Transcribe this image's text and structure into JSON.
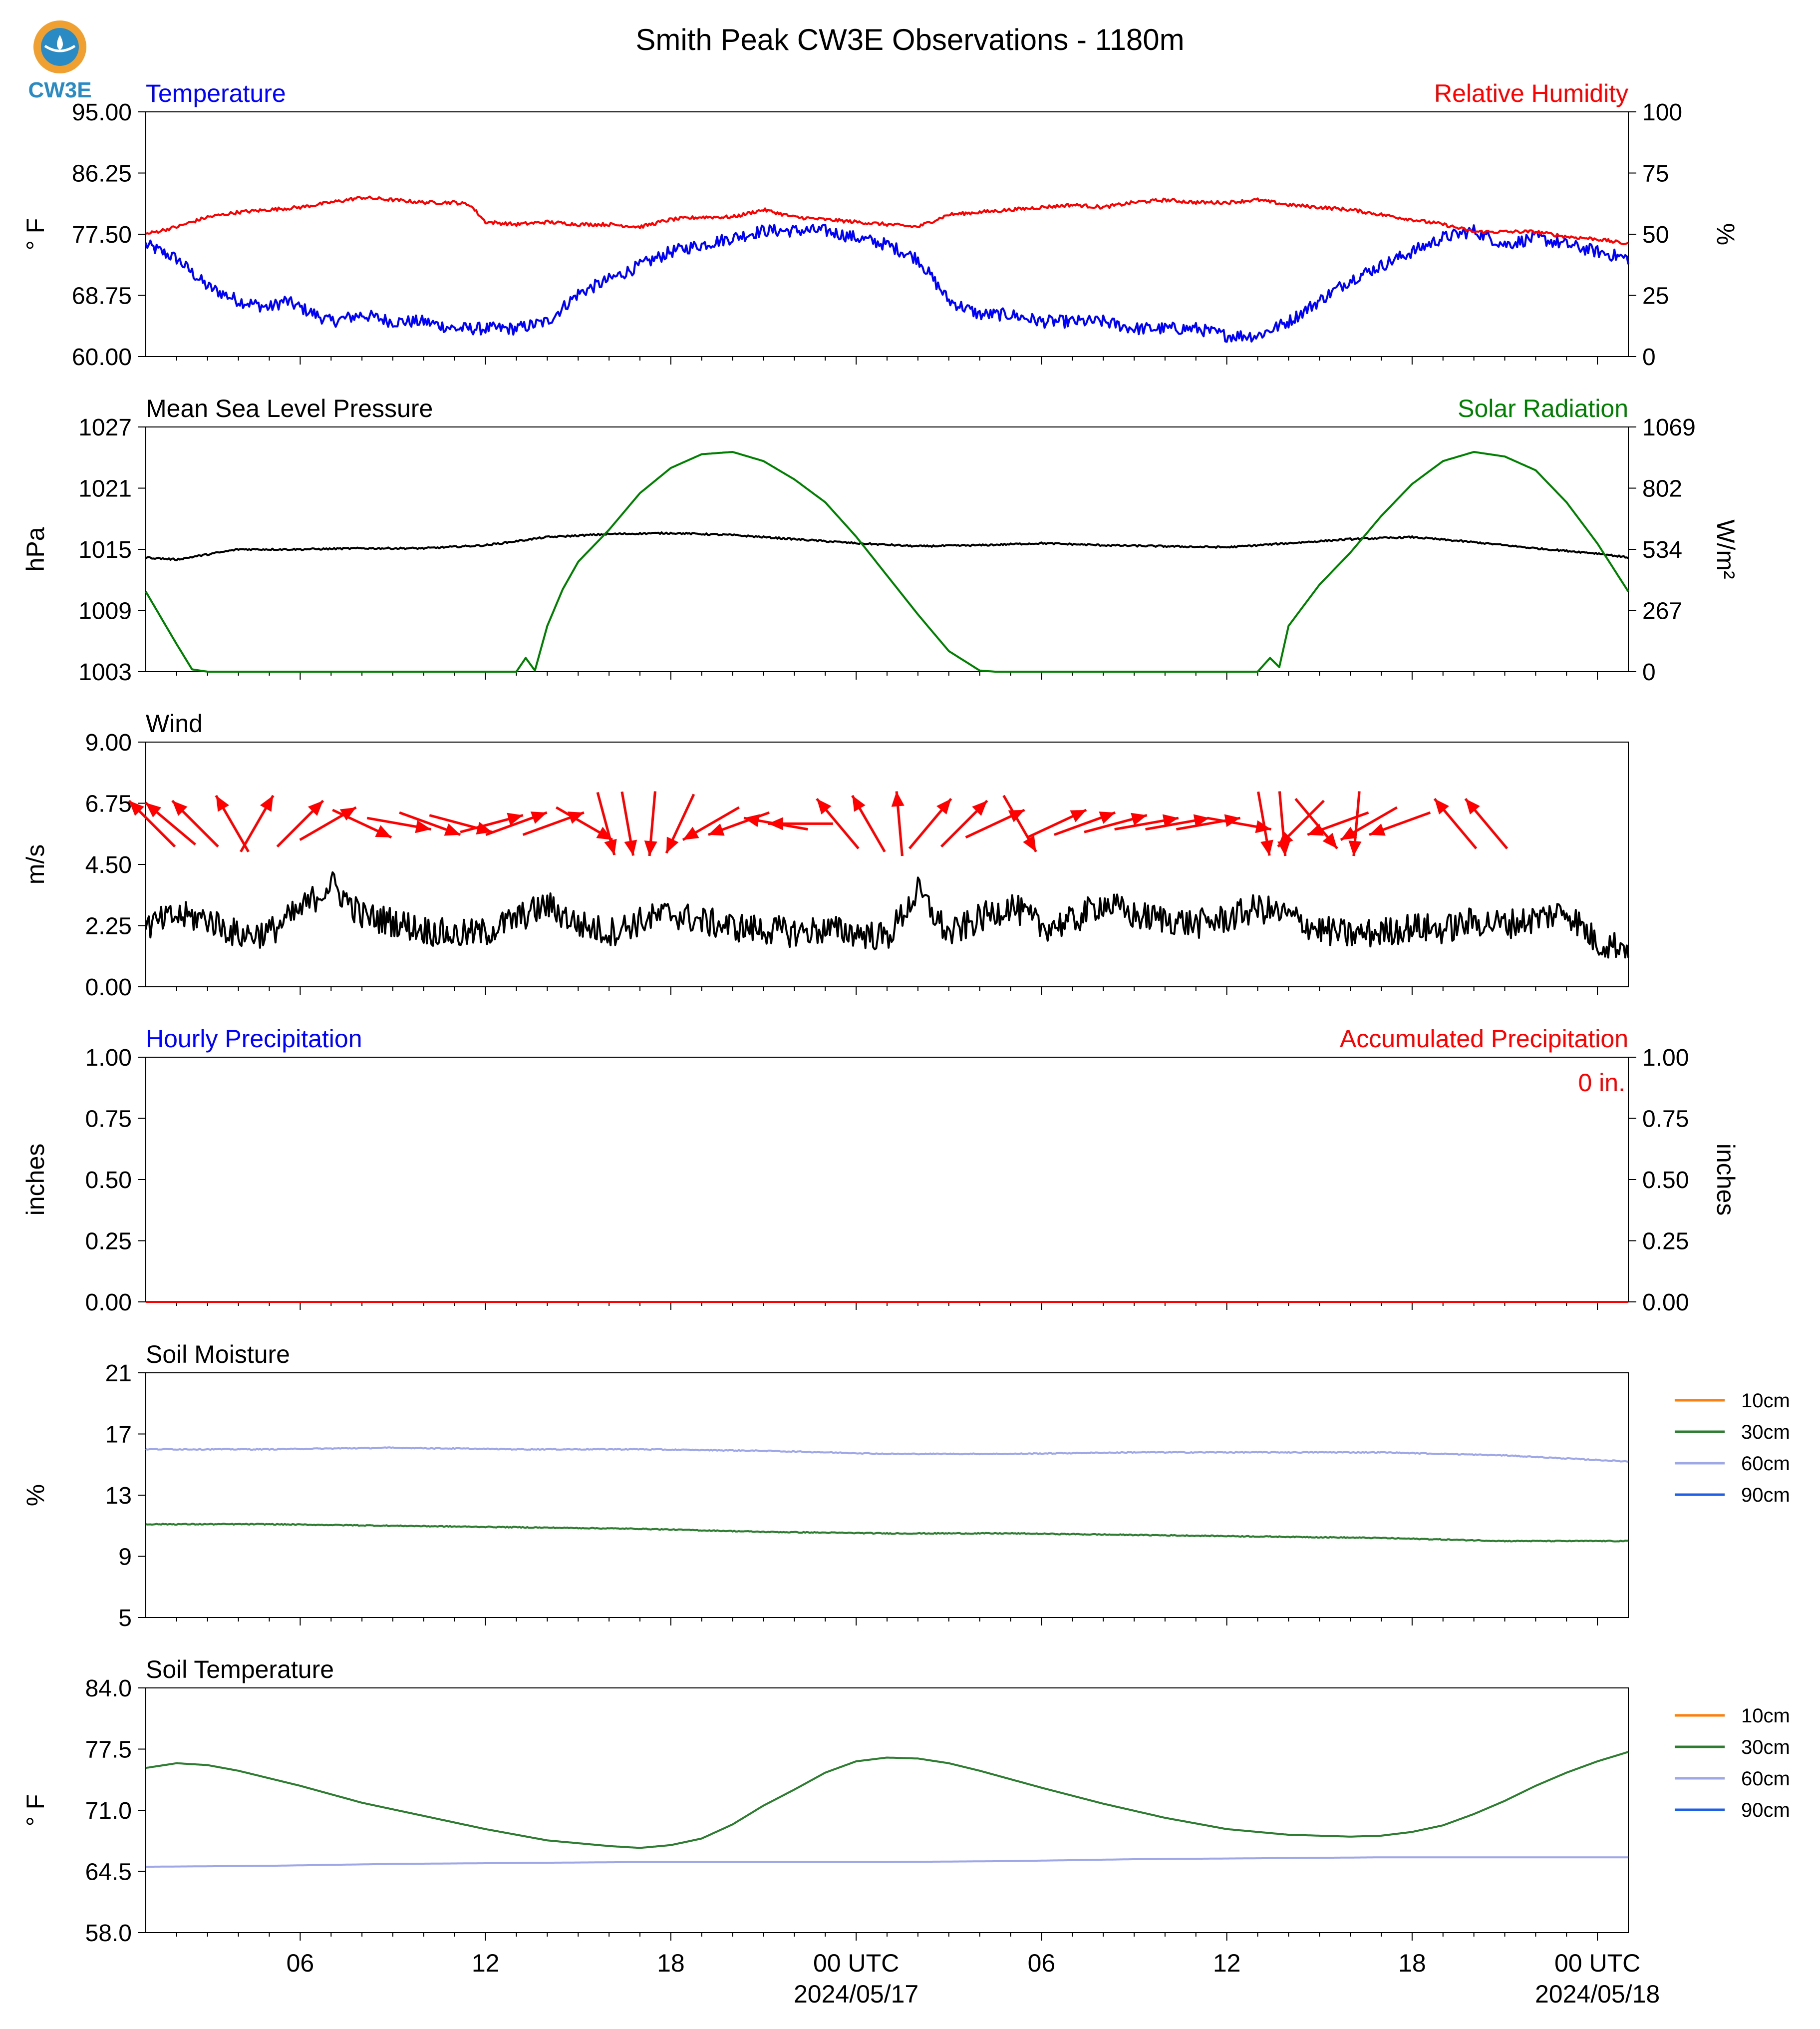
{
  "page": {
    "title": "Smith Peak CW3E Observations - 1180m",
    "logo_text": "CW3E",
    "colors": {
      "temp": "#0000ff",
      "rh": "#ff0000",
      "solar": "#008000",
      "black": "#000000",
      "soil10": "#ff7f0e",
      "soil30": "#2e7d32",
      "soil60": "#9fa8e6",
      "soil90": "#1f5fe6",
      "logo_ring": "#f0a030",
      "logo_blue": "#2a8bc4"
    }
  },
  "x_axis": {
    "major_ticks": [
      {
        "hour": 6,
        "label": "06"
      },
      {
        "hour": 12,
        "label": "12"
      },
      {
        "hour": 18,
        "label": "18"
      },
      {
        "hour": 24,
        "label": "00 UTC",
        "date": "2024/05/17"
      },
      {
        "hour": 30,
        "label": "06"
      },
      {
        "hour": 36,
        "label": "12"
      },
      {
        "hour": 42,
        "label": "18"
      },
      {
        "hour": 48,
        "label": "00 UTC",
        "date": "2024/05/18"
      }
    ],
    "range_hours": [
      1,
      49
    ]
  },
  "chart_data": [
    {
      "type": "line",
      "title": "Temperature",
      "title_right": "Relative Humidity",
      "ylabel": "° F",
      "ylabel_right": "%",
      "ylim": [
        60,
        95
      ],
      "ylim_right": [
        0,
        100
      ],
      "yticks": [
        "60.00",
        "68.75",
        "77.50",
        "86.25",
        "95.00"
      ],
      "yticks_right": [
        "0",
        "25",
        "50",
        "75",
        "100"
      ],
      "series": [
        {
          "axis": "left",
          "color": "#0000ff",
          "noise": 0.9,
          "x": [
            1,
            2,
            3,
            4,
            5,
            5.5,
            6,
            7,
            8,
            9,
            10,
            11,
            12,
            13,
            14,
            15,
            16,
            17,
            18,
            19,
            20,
            21,
            22,
            23,
            24,
            25,
            26,
            27,
            28,
            29,
            30,
            31,
            32,
            33,
            34,
            35,
            36,
            37,
            38,
            39,
            40,
            41,
            42,
            43,
            44,
            45,
            46,
            47,
            48,
            49
          ],
          "y": [
            76,
            74,
            70,
            68,
            67,
            68,
            67,
            65,
            66,
            65,
            65,
            64,
            64,
            64,
            65,
            69,
            71,
            73,
            75,
            76,
            77,
            78,
            78,
            78,
            77,
            76,
            74,
            68,
            66,
            66,
            65,
            65,
            65,
            64,
            64,
            64,
            63,
            63,
            65,
            68,
            71,
            73,
            75,
            77,
            78,
            76,
            77,
            76,
            75,
            74
          ]
        },
        {
          "axis": "right",
          "color": "#ff0000",
          "noise": 0.7,
          "x": [
            1,
            2,
            3,
            4,
            5,
            6,
            7,
            8,
            9,
            10,
            11,
            11.5,
            12,
            13,
            14,
            15,
            16,
            17,
            18,
            19,
            20,
            21,
            22,
            23,
            24,
            25,
            26,
            27,
            28,
            29,
            30,
            31,
            32,
            33,
            34,
            35,
            36,
            37,
            38,
            39,
            40,
            41,
            42,
            43,
            44,
            45,
            46,
            47,
            48,
            49
          ],
          "y": [
            50,
            53,
            57,
            59,
            60,
            61,
            63,
            65,
            64,
            63,
            63,
            62,
            55,
            54,
            55,
            54,
            54,
            53,
            56,
            57,
            57,
            60,
            57,
            56,
            55,
            54,
            53,
            58,
            59,
            60,
            61,
            62,
            61,
            63,
            64,
            63,
            63,
            64,
            62,
            61,
            60,
            58,
            56,
            54,
            51,
            51,
            51,
            49,
            48,
            46
          ]
        }
      ]
    },
    {
      "type": "line",
      "title": "Mean Sea Level Pressure",
      "title_right": "Solar Radiation",
      "ylabel": "hPa",
      "ylabel_right": "W/m²",
      "ylim": [
        1003,
        1027
      ],
      "ylim_right": [
        0,
        1069
      ],
      "yticks": [
        "1003",
        "1009",
        "1015",
        "1021",
        "1027"
      ],
      "yticks_right": [
        "0",
        "267",
        "534",
        "802",
        "1069"
      ],
      "series": [
        {
          "axis": "left",
          "color": "#000000",
          "noise": 0.08,
          "x": [
            1,
            2,
            3,
            4,
            6,
            8,
            10,
            12,
            14,
            16,
            18,
            20,
            22,
            24,
            26,
            28,
            30,
            32,
            34,
            36,
            38,
            40,
            42,
            44,
            46,
            48,
            49
          ],
          "y": [
            1014.2,
            1014.0,
            1014.5,
            1015.0,
            1015.0,
            1015.1,
            1015.1,
            1015.4,
            1016.2,
            1016.5,
            1016.6,
            1016.4,
            1016.0,
            1015.6,
            1015.3,
            1015.4,
            1015.6,
            1015.4,
            1015.3,
            1015.2,
            1015.6,
            1016.0,
            1016.2,
            1015.7,
            1015.1,
            1014.6,
            1014.2
          ]
        },
        {
          "axis": "right",
          "color": "#008000",
          "noise": 0,
          "x": [
            1,
            2,
            2.5,
            3,
            13,
            13.3,
            13.6,
            14,
            14.5,
            15,
            16,
            17,
            18,
            19,
            20,
            21,
            22,
            23,
            24,
            25,
            26,
            27,
            28,
            28.5,
            37,
            37.4,
            37.7,
            38,
            39,
            40,
            41,
            42,
            43,
            44,
            45,
            46,
            47,
            48,
            49
          ],
          "y": [
            350,
            120,
            10,
            0,
            0,
            60,
            5,
            200,
            360,
            480,
            620,
            780,
            890,
            950,
            960,
            920,
            840,
            740,
            590,
            420,
            250,
            90,
            5,
            0,
            0,
            60,
            20,
            200,
            380,
            520,
            680,
            820,
            920,
            960,
            940,
            880,
            740,
            560,
            350
          ]
        }
      ]
    },
    {
      "type": "line",
      "title": "Wind",
      "ylabel": "m/s",
      "ylim": [
        0,
        9
      ],
      "yticks": [
        "0.00",
        "2.25",
        "4.50",
        "6.75",
        "9.00"
      ],
      "series": [
        {
          "axis": "left",
          "color": "#000000",
          "noise": 0.55,
          "x": [
            1,
            2,
            3,
            4,
            5,
            6,
            7,
            8,
            9,
            10,
            11,
            12,
            13,
            14,
            15,
            16,
            17,
            18,
            19,
            20,
            21,
            22,
            23,
            24,
            25,
            26,
            27,
            28,
            29,
            30,
            31,
            32,
            33,
            34,
            35,
            36,
            37,
            38,
            39,
            40,
            41,
            42,
            43,
            44,
            45,
            46,
            47,
            48,
            49
          ],
          "y": [
            2.2,
            2.6,
            2.5,
            1.9,
            2.0,
            2.8,
            3.8,
            2.6,
            2.4,
            2.1,
            1.9,
            2.0,
            2.5,
            3.0,
            2.3,
            2.0,
            2.4,
            2.7,
            2.4,
            2.2,
            2.1,
            2.0,
            2.1,
            2.0,
            1.8,
            3.5,
            1.9,
            2.5,
            3.0,
            2.2,
            2.4,
            3.1,
            2.6,
            2.5,
            2.3,
            2.5,
            2.9,
            2.6,
            2.1,
            1.9,
            2.0,
            2.2,
            2.1,
            2.4,
            2.3,
            2.5,
            2.8,
            1.6,
            1.5
          ]
        }
      ],
      "arrows": [
        {
          "hour": 1.2,
          "dir_deg": 315,
          "speed": 2
        },
        {
          "hour": 1.8,
          "dir_deg": 310,
          "speed": 2
        },
        {
          "hour": 2.6,
          "dir_deg": 315,
          "speed": 2
        },
        {
          "hour": 3.8,
          "dir_deg": 330,
          "speed": 2
        },
        {
          "hour": 4.6,
          "dir_deg": 30,
          "speed": 2
        },
        {
          "hour": 6.0,
          "dir_deg": 45,
          "speed": 2
        },
        {
          "hour": 6.9,
          "dir_deg": 60,
          "speed": 2
        },
        {
          "hour": 8.0,
          "dir_deg": 115,
          "speed": 2
        },
        {
          "hour": 9.2,
          "dir_deg": 100,
          "speed": 2
        },
        {
          "hour": 10.2,
          "dir_deg": 110,
          "speed": 2
        },
        {
          "hour": 11.2,
          "dir_deg": 105,
          "speed": 2
        },
        {
          "hour": 12.2,
          "dir_deg": 75,
          "speed": 2
        },
        {
          "hour": 13.0,
          "dir_deg": 70,
          "speed": 2
        },
        {
          "hour": 14.2,
          "dir_deg": 70,
          "speed": 2
        },
        {
          "hour": 15.2,
          "dir_deg": 120,
          "speed": 2
        },
        {
          "hour": 15.9,
          "dir_deg": 165,
          "speed": 2
        },
        {
          "hour": 16.6,
          "dir_deg": 170,
          "speed": 2
        },
        {
          "hour": 17.4,
          "dir_deg": 185,
          "speed": 2
        },
        {
          "hour": 18.3,
          "dir_deg": 205,
          "speed": 2
        },
        {
          "hour": 19.3,
          "dir_deg": 240,
          "speed": 2
        },
        {
          "hour": 20.2,
          "dir_deg": 250,
          "speed": 2
        },
        {
          "hour": 21.4,
          "dir_deg": 280,
          "speed": 2
        },
        {
          "hour": 22.2,
          "dir_deg": 270,
          "speed": 2
        },
        {
          "hour": 23.4,
          "dir_deg": 320,
          "speed": 2
        },
        {
          "hour": 24.4,
          "dir_deg": 330,
          "speed": 2
        },
        {
          "hour": 25.4,
          "dir_deg": 355,
          "speed": 2
        },
        {
          "hour": 26.4,
          "dir_deg": 40,
          "speed": 2
        },
        {
          "hour": 27.5,
          "dir_deg": 45,
          "speed": 2
        },
        {
          "hour": 28.5,
          "dir_deg": 65,
          "speed": 2
        },
        {
          "hour": 29.3,
          "dir_deg": 150,
          "speed": 2
        },
        {
          "hour": 30.5,
          "dir_deg": 65,
          "speed": 2
        },
        {
          "hour": 31.4,
          "dir_deg": 70,
          "speed": 2
        },
        {
          "hour": 32.4,
          "dir_deg": 75,
          "speed": 2
        },
        {
          "hour": 33.4,
          "dir_deg": 80,
          "speed": 2
        },
        {
          "hour": 34.4,
          "dir_deg": 80,
          "speed": 2
        },
        {
          "hour": 35.4,
          "dir_deg": 80,
          "speed": 2
        },
        {
          "hour": 36.4,
          "dir_deg": 100,
          "speed": 2
        },
        {
          "hour": 37.2,
          "dir_deg": 170,
          "speed": 2
        },
        {
          "hour": 37.8,
          "dir_deg": 175,
          "speed": 2
        },
        {
          "hour": 38.4,
          "dir_deg": 225,
          "speed": 2
        },
        {
          "hour": 38.9,
          "dir_deg": 140,
          "speed": 2
        },
        {
          "hour": 39.6,
          "dir_deg": 250,
          "speed": 2
        },
        {
          "hour": 40.2,
          "dir_deg": 185,
          "speed": 2
        },
        {
          "hour": 40.6,
          "dir_deg": 240,
          "speed": 2
        },
        {
          "hour": 41.6,
          "dir_deg": 250,
          "speed": 2
        },
        {
          "hour": 43.4,
          "dir_deg": 320,
          "speed": 2
        },
        {
          "hour": 44.4,
          "dir_deg": 320,
          "speed": 2
        }
      ]
    },
    {
      "type": "line",
      "title": "Hourly Precipitation",
      "title_right": "Accumulated Precipitation",
      "annotation": "0 in.",
      "ylabel": "inches",
      "ylabel_right": "inches",
      "ylim": [
        0,
        1
      ],
      "ylim_right": [
        0,
        1
      ],
      "yticks": [
        "0.00",
        "0.25",
        "0.50",
        "0.75",
        "1.00"
      ],
      "yticks_right": [
        "0.00",
        "0.25",
        "0.50",
        "0.75",
        "1.00"
      ],
      "series": [
        {
          "axis": "left",
          "color": "#0000ff",
          "noise": 0,
          "x": [
            1,
            49
          ],
          "y": [
            0,
            0
          ]
        },
        {
          "axis": "right",
          "color": "#ff0000",
          "noise": 0,
          "x": [
            1,
            49
          ],
          "y": [
            0,
            0
          ]
        }
      ]
    },
    {
      "type": "line",
      "title": "Soil Moisture",
      "ylabel": "%",
      "ylim": [
        5,
        21
      ],
      "yticks": [
        "5",
        "9",
        "13",
        "17",
        "21"
      ],
      "legend": [
        "10cm",
        "30cm",
        "60cm",
        "90cm"
      ],
      "legend_colors": [
        "#ff7f0e",
        "#2e7d32",
        "#9fa8e6",
        "#1f5fe6"
      ],
      "series": [
        {
          "name": "60cm",
          "axis": "left",
          "color": "#9fa8e6",
          "noise": 0.03,
          "x": [
            1,
            5,
            9,
            13,
            17,
            21,
            25,
            29,
            33,
            37,
            41,
            45,
            49
          ],
          "y": [
            16.0,
            16.0,
            16.1,
            16.0,
            16.0,
            15.9,
            15.7,
            15.7,
            15.8,
            15.8,
            15.8,
            15.6,
            15.2
          ]
        },
        {
          "name": "30cm",
          "axis": "left",
          "color": "#2e7d32",
          "noise": 0.03,
          "x": [
            1,
            5,
            9,
            13,
            17,
            21,
            25,
            29,
            33,
            37,
            41,
            45,
            49
          ],
          "y": [
            11.1,
            11.1,
            11.0,
            10.9,
            10.8,
            10.6,
            10.5,
            10.5,
            10.4,
            10.3,
            10.2,
            10.0,
            10.0
          ]
        }
      ]
    },
    {
      "type": "line",
      "title": "Soil Temperature",
      "ylabel": "° F",
      "ylim": [
        58,
        84
      ],
      "yticks": [
        "58.0",
        "64.5",
        "71.0",
        "77.5",
        "84.0"
      ],
      "legend": [
        "10cm",
        "30cm",
        "60cm",
        "90cm"
      ],
      "legend_colors": [
        "#ff7f0e",
        "#2e7d32",
        "#9fa8e6",
        "#1f5fe6"
      ],
      "series": [
        {
          "name": "30cm",
          "axis": "left",
          "color": "#2e7d32",
          "noise": 0,
          "x": [
            1,
            2,
            3,
            4,
            6,
            8,
            10,
            12,
            14,
            16,
            17,
            18,
            19,
            20,
            21,
            22,
            23,
            24,
            25,
            26,
            27,
            28,
            30,
            32,
            34,
            36,
            38,
            40,
            41,
            42,
            43,
            44,
            45,
            46,
            47,
            48,
            49
          ],
          "y": [
            75.5,
            76.0,
            75.8,
            75.2,
            73.6,
            71.8,
            70.4,
            69.0,
            67.8,
            67.2,
            67.0,
            67.3,
            68.0,
            69.5,
            71.5,
            73.2,
            75.0,
            76.2,
            76.6,
            76.5,
            76.0,
            75.2,
            73.4,
            71.7,
            70.2,
            69.0,
            68.4,
            68.2,
            68.3,
            68.7,
            69.4,
            70.6,
            72.0,
            73.6,
            75.0,
            76.2,
            77.2
          ]
        },
        {
          "name": "60cm",
          "axis": "left",
          "color": "#9fa8e6",
          "noise": 0,
          "x": [
            1,
            5,
            9,
            13,
            17,
            21,
            25,
            29,
            33,
            37,
            41,
            45,
            49
          ],
          "y": [
            65.0,
            65.1,
            65.3,
            65.4,
            65.5,
            65.5,
            65.5,
            65.6,
            65.8,
            65.9,
            66.0,
            66.0,
            66.0
          ]
        }
      ]
    }
  ]
}
